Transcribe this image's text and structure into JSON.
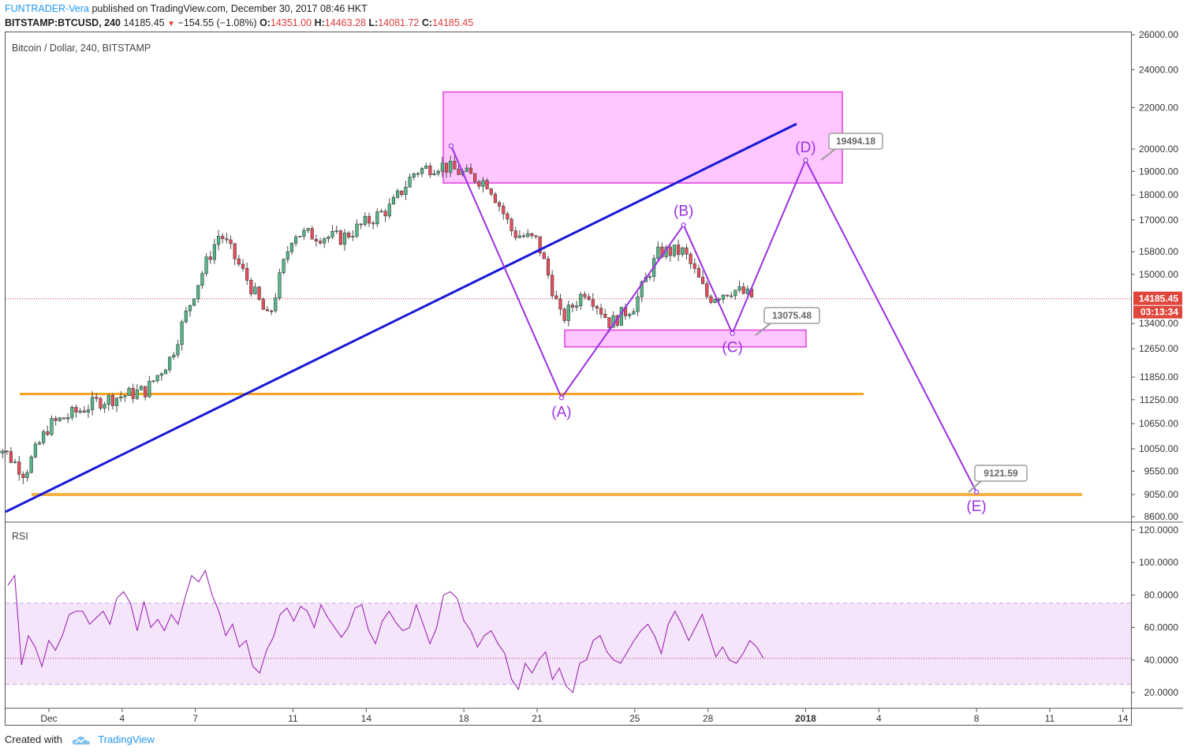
{
  "header": {
    "author": "FUNTRADER-Vera",
    "published_text": "published on TradingView.com, December 30, 2017 08:46 HKT",
    "symbol": "BITSTAMP:BTCUSD, 240",
    "last": "14185.45",
    "change": "−154.55 (−1.08%)",
    "o_label": "O:",
    "o_value": "14351.00",
    "h_label": "H:",
    "h_value": "14463.28",
    "l_label": "L:",
    "l_value": "14081.72",
    "c_label": "C:",
    "c_value": "14185.45"
  },
  "footer": {
    "created_with": "Created with",
    "brand": "TradingView"
  },
  "colors": {
    "up": "#53b987",
    "down": "#eb4d5c",
    "trendline": "#1a1ad6",
    "wave": "#9b30e6",
    "zone": "#ff80ff",
    "support": "#f5a623",
    "price_tag": "#e0463c",
    "rsi": "#9c27b0"
  },
  "chart_data": [
    {
      "type": "candlestick",
      "title": "Bitcoin / Dollar, 240, BITSTAMP",
      "x_tick_labels": [
        "Dec",
        "4",
        "7",
        "11",
        "14",
        "18",
        "21",
        "25",
        "28",
        "2018",
        "4",
        "8",
        "11",
        "14"
      ],
      "y_tick_labels": [
        "26000.00",
        "24000.00",
        "22000.00",
        "20000.00",
        "19000.00",
        "18000.00",
        "17000.00",
        "15800.00",
        "15000.00",
        "14185.45",
        "03:13:34",
        "13400.00",
        "12650.00",
        "11850.00",
        "11250.00",
        "10650.00",
        "10050.00",
        "9550.00",
        "9050.00",
        "8600.00"
      ],
      "y_scale": "log",
      "ylim": [
        8500,
        26000
      ],
      "current_price": 14185.45,
      "current_price_label": "14185.45",
      "countdown_label": "03:13:34",
      "approx_close_path": [
        {
          "x": "Nov 29",
          "y": 10100
        },
        {
          "x": "Nov 30",
          "y": 9500
        },
        {
          "x": "Dec 1",
          "y": 10600
        },
        {
          "x": "Dec 3",
          "y": 11200
        },
        {
          "x": "Dec 5",
          "y": 11500
        },
        {
          "x": "Dec 6",
          "y": 12400
        },
        {
          "x": "Dec 7",
          "y": 14500
        },
        {
          "x": "Dec 8",
          "y": 16500
        },
        {
          "x": "Dec 9",
          "y": 15000
        },
        {
          "x": "Dec 10",
          "y": 13500
        },
        {
          "x": "Dec 11",
          "y": 16500
        },
        {
          "x": "Dec 13",
          "y": 16300
        },
        {
          "x": "Dec 15",
          "y": 17500
        },
        {
          "x": "Dec 16",
          "y": 19000
        },
        {
          "x": "Dec 17",
          "y": 19300
        },
        {
          "x": "Dec 19",
          "y": 18500
        },
        {
          "x": "Dec 20",
          "y": 16500
        },
        {
          "x": "Dec 21",
          "y": 16200
        },
        {
          "x": "Dec 22",
          "y": 13500
        },
        {
          "x": "Dec 23",
          "y": 14500
        },
        {
          "x": "Dec 24",
          "y": 13400
        },
        {
          "x": "Dec 25",
          "y": 14000
        },
        {
          "x": "Dec 26",
          "y": 15800
        },
        {
          "x": "Dec 27",
          "y": 15800
        },
        {
          "x": "Dec 28",
          "y": 14200
        },
        {
          "x": "Dec 29",
          "y": 14500
        },
        {
          "x": "Dec 30",
          "y": 14185
        }
      ],
      "wave_labels": [
        {
          "label": "(A)",
          "x": "Dec 22",
          "y": 11300
        },
        {
          "label": "(B)",
          "x": "Dec 27",
          "y": 16800
        },
        {
          "label": "(C)",
          "x": "Dec 29",
          "y": 13100
        },
        {
          "label": "(D)",
          "x": "Jan 1",
          "y": 19500
        },
        {
          "label": "(E)",
          "x": "Jan 8",
          "y": 9100
        }
      ],
      "target_labels": [
        "19494.18",
        "13075.48",
        "9121.59"
      ],
      "resistance_zone": [
        18500,
        22800
      ],
      "support_zone": [
        12700,
        13200
      ],
      "support_lines": [
        11400,
        9050
      ]
    },
    {
      "type": "line",
      "title": "RSI",
      "y_tick_labels": [
        "120.0000",
        "100.0000",
        "80.0000",
        "60.0000",
        "40.0000",
        "20.0000"
      ],
      "ylim": [
        0,
        122
      ],
      "band": [
        25,
        75
      ],
      "last_value": 41,
      "values": [
        86,
        92,
        37,
        55,
        48,
        36,
        52,
        46,
        55,
        68,
        70,
        70,
        62,
        66,
        70,
        62,
        78,
        82,
        75,
        58,
        76,
        60,
        65,
        58,
        68,
        62,
        78,
        92,
        88,
        95,
        80,
        70,
        55,
        62,
        48,
        52,
        36,
        32,
        46,
        54,
        68,
        72,
        64,
        73,
        70,
        60,
        74,
        66,
        60,
        54,
        60,
        72,
        74,
        58,
        50,
        64,
        70,
        63,
        58,
        60,
        74,
        62,
        50,
        60,
        80,
        82,
        78,
        64,
        58,
        48,
        55,
        58,
        50,
        44,
        28,
        22,
        38,
        32,
        40,
        45,
        28,
        35,
        24,
        20,
        38,
        40,
        52,
        55,
        45,
        40,
        38,
        45,
        52,
        58,
        62,
        55,
        44,
        62,
        70,
        62,
        52,
        60,
        68,
        55,
        42,
        48,
        40,
        38,
        44,
        52,
        48,
        41
      ]
    }
  ]
}
